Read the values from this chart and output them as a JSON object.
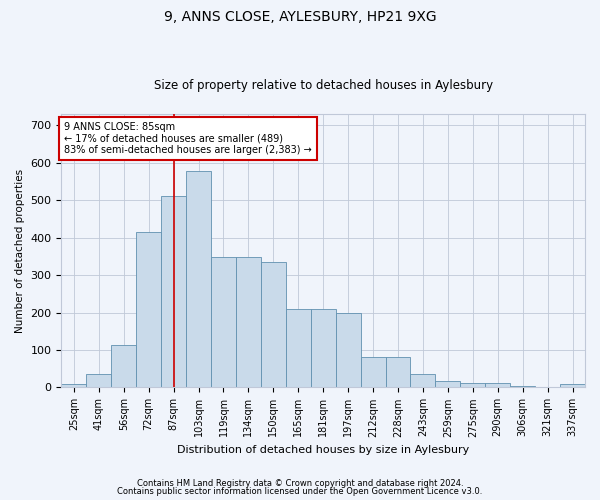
{
  "title": "9, ANNS CLOSE, AYLESBURY, HP21 9XG",
  "subtitle": "Size of property relative to detached houses in Aylesbury",
  "xlabel": "Distribution of detached houses by size in Aylesbury",
  "ylabel": "Number of detached properties",
  "bar_labels": [
    "25sqm",
    "41sqm",
    "56sqm",
    "72sqm",
    "87sqm",
    "103sqm",
    "119sqm",
    "134sqm",
    "150sqm",
    "165sqm",
    "181sqm",
    "197sqm",
    "212sqm",
    "228sqm",
    "243sqm",
    "259sqm",
    "275sqm",
    "290sqm",
    "306sqm",
    "321sqm",
    "337sqm"
  ],
  "bar_values": [
    10,
    35,
    113,
    415,
    510,
    578,
    347,
    347,
    335,
    210,
    210,
    200,
    80,
    80,
    35,
    18,
    12,
    12,
    5,
    2,
    8
  ],
  "bar_color": "#c9daea",
  "bar_edge_color": "#6090b0",
  "vline_x": 4.5,
  "vline_color": "#cc0000",
  "annotation_text": "9 ANNS CLOSE: 85sqm\n← 17% of detached houses are smaller (489)\n83% of semi-detached houses are larger (2,383) →",
  "annotation_box_color": "white",
  "annotation_box_edge": "#cc0000",
  "ylim": [
    0,
    730
  ],
  "yticks": [
    0,
    100,
    200,
    300,
    400,
    500,
    600,
    700
  ],
  "footer1": "Contains HM Land Registry data © Crown copyright and database right 2024.",
  "footer2": "Contains public sector information licensed under the Open Government Licence v3.0.",
  "bg_color": "#f0f4fb",
  "plot_bg_color": "#f0f4fb",
  "grid_color": "#c0c8d8",
  "title_fontsize": 10,
  "subtitle_fontsize": 8.5,
  "ylabel_fontsize": 7.5,
  "xlabel_fontsize": 8,
  "tick_fontsize": 7,
  "footer_fontsize": 6
}
